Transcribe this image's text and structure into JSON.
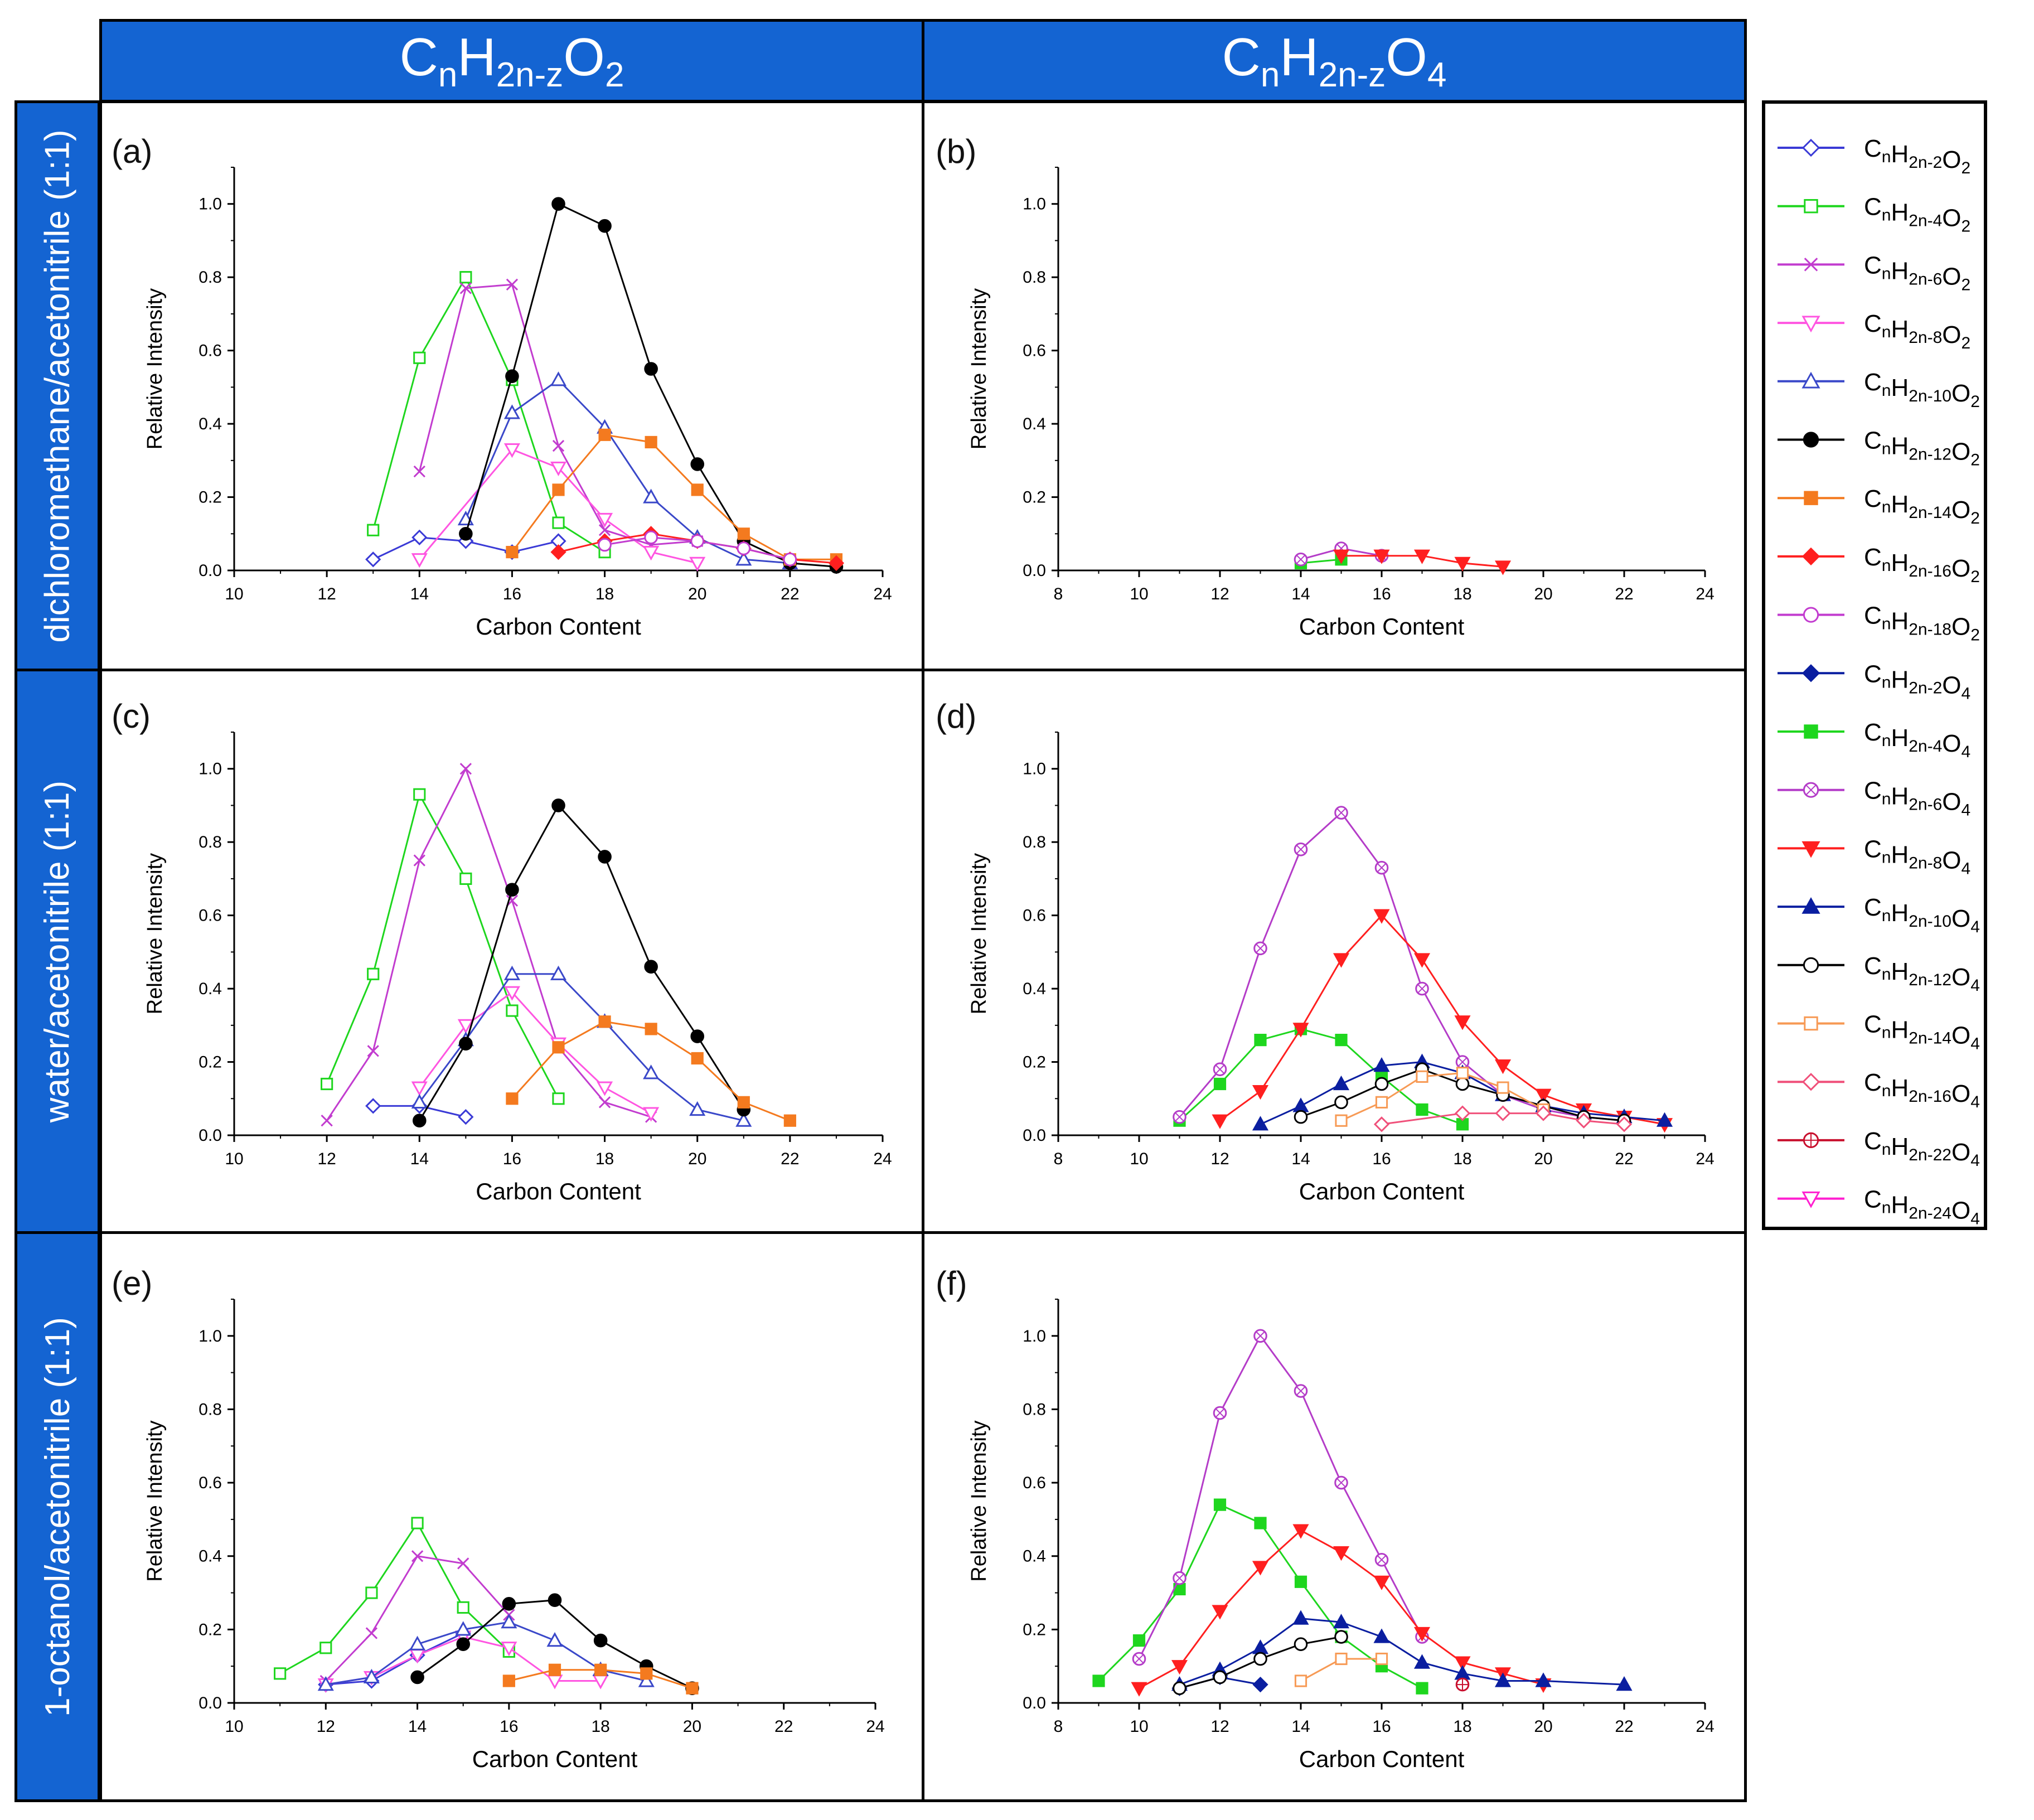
{
  "headers": {
    "columns": [
      {
        "base": "C",
        "sub1": "n",
        "mid": "H",
        "sub2": "2n-z",
        "mid2": "O",
        "sub3": "2"
      },
      {
        "base": "C",
        "sub1": "n",
        "mid": "H",
        "sub2": "2n-z",
        "mid2": "O",
        "sub3": "4"
      }
    ],
    "rows": [
      "dichloromethane/acetonitrile (1:1)",
      "water/acetonitrile (1:1)",
      "1-octanol/acetonitrile (1:1)"
    ]
  },
  "series_styles": [
    {
      "id": "O2_2",
      "z": "2",
      "o": "2",
      "color": "#3a3ad6",
      "marker": "diamond",
      "filled": false
    },
    {
      "id": "O2_4",
      "z": "4",
      "o": "2",
      "color": "#1ed61e",
      "marker": "square",
      "filled": false
    },
    {
      "id": "O2_6",
      "z": "6",
      "o": "2",
      "color": "#c23ccf",
      "marker": "cross",
      "filled": false
    },
    {
      "id": "O2_8",
      "z": "8",
      "o": "2",
      "color": "#ff55e1",
      "marker": "tri-down",
      "filled": false
    },
    {
      "id": "O2_10",
      "z": "10",
      "o": "2",
      "color": "#3a48c9",
      "marker": "tri-up",
      "filled": false
    },
    {
      "id": "O2_12",
      "z": "12",
      "o": "2",
      "color": "#000000",
      "marker": "circle",
      "filled": true
    },
    {
      "id": "O2_14",
      "z": "14",
      "o": "2",
      "color": "#f47a1f",
      "marker": "square",
      "filled": true
    },
    {
      "id": "O2_16",
      "z": "16",
      "o": "2",
      "color": "#ff1f1f",
      "marker": "diamond",
      "filled": true
    },
    {
      "id": "O2_18",
      "z": "18",
      "o": "2",
      "color": "#c23ccf",
      "marker": "circle",
      "filled": false
    },
    {
      "id": "O4_2",
      "z": "2",
      "o": "4",
      "color": "#0a1ea0",
      "marker": "diamond",
      "filled": true
    },
    {
      "id": "O4_4",
      "z": "4",
      "o": "4",
      "color": "#1ed61e",
      "marker": "square",
      "filled": true
    },
    {
      "id": "O4_6",
      "z": "6",
      "o": "4",
      "color": "#b43cc8",
      "marker": "circle-x",
      "filled": false
    },
    {
      "id": "O4_8",
      "z": "8",
      "o": "4",
      "color": "#ff1f1f",
      "marker": "tri-down",
      "filled": true
    },
    {
      "id": "O4_10",
      "z": "10",
      "o": "4",
      "color": "#0a1ea0",
      "marker": "tri-up",
      "filled": true
    },
    {
      "id": "O4_12",
      "z": "12",
      "o": "4",
      "color": "#000000",
      "marker": "circle",
      "filled": false
    },
    {
      "id": "O4_14",
      "z": "14",
      "o": "4",
      "color": "#f79a55",
      "marker": "square",
      "filled": false
    },
    {
      "id": "O4_16",
      "z": "16",
      "o": "4",
      "color": "#f0507a",
      "marker": "diamond",
      "filled": false
    },
    {
      "id": "O4_22",
      "z": "22",
      "o": "4",
      "color": "#c8102e",
      "marker": "circle-plus",
      "filled": false
    },
    {
      "id": "O4_24",
      "z": "24",
      "o": "4",
      "color": "#ff1fd0",
      "marker": "tri-down",
      "filled": false
    }
  ],
  "chart_data": [
    {
      "panel": "(a)",
      "type": "line",
      "xlabel": "Carbon Content",
      "ylabel": "Relative Intensity",
      "xlim": [
        10,
        24
      ],
      "ylim": [
        0,
        1.1
      ],
      "xticks": [
        "10",
        "12",
        "14",
        "16",
        "18",
        "20",
        "22",
        "24"
      ],
      "yticks": [
        "0.0",
        "0.2",
        "0.4",
        "0.6",
        "0.8",
        "1.0"
      ],
      "series": [
        {
          "id": "O2_2",
          "x": [
            13,
            14,
            15,
            16,
            17
          ],
          "y": [
            0.03,
            0.09,
            0.08,
            0.05,
            0.08
          ]
        },
        {
          "id": "O2_4",
          "x": [
            13,
            14,
            15,
            16,
            17,
            18
          ],
          "y": [
            0.11,
            0.58,
            0.8,
            0.52,
            0.13,
            0.05
          ]
        },
        {
          "id": "O2_6",
          "x": [
            14,
            15,
            16,
            17,
            18,
            19,
            20
          ],
          "y": [
            0.27,
            0.77,
            0.78,
            0.34,
            0.11,
            0.07,
            0.08
          ]
        },
        {
          "id": "O2_8",
          "x": [
            14,
            16,
            17,
            18,
            19,
            20
          ],
          "y": [
            0.03,
            0.33,
            0.28,
            0.14,
            0.05,
            0.02
          ]
        },
        {
          "id": "O2_10",
          "x": [
            15,
            16,
            17,
            18,
            19,
            20,
            21,
            22
          ],
          "y": [
            0.14,
            0.43,
            0.52,
            0.39,
            0.2,
            0.09,
            0.03,
            0.02
          ]
        },
        {
          "id": "O2_12",
          "x": [
            15,
            16,
            17,
            18,
            19,
            20,
            21,
            22,
            23
          ],
          "y": [
            0.1,
            0.53,
            1.0,
            0.94,
            0.55,
            0.29,
            0.08,
            0.02,
            0.01
          ]
        },
        {
          "id": "O2_14",
          "x": [
            16,
            17,
            18,
            19,
            20,
            21,
            22,
            23
          ],
          "y": [
            0.05,
            0.22,
            0.37,
            0.35,
            0.22,
            0.1,
            0.03,
            0.03
          ]
        },
        {
          "id": "O2_16",
          "x": [
            17,
            18,
            19,
            20,
            21,
            22,
            23
          ],
          "y": [
            0.05,
            0.08,
            0.1,
            0.08,
            0.06,
            0.03,
            0.02
          ]
        },
        {
          "id": "O2_18",
          "x": [
            18,
            19,
            20,
            21,
            22
          ],
          "y": [
            0.07,
            0.09,
            0.08,
            0.06,
            0.03
          ]
        }
      ]
    },
    {
      "panel": "(b)",
      "type": "line",
      "xlabel": "Carbon Content",
      "ylabel": "Relative Intensity",
      "xlim": [
        8,
        24
      ],
      "ylim": [
        0,
        1.1
      ],
      "xticks": [
        "8",
        "10",
        "12",
        "14",
        "16",
        "18",
        "20",
        "22",
        "24"
      ],
      "yticks": [
        "0.0",
        "0.2",
        "0.4",
        "0.6",
        "0.8",
        "1.0"
      ],
      "series": [
        {
          "id": "O4_4",
          "x": [
            14,
            15
          ],
          "y": [
            0.02,
            0.03
          ]
        },
        {
          "id": "O4_6",
          "x": [
            14,
            15,
            16
          ],
          "y": [
            0.03,
            0.06,
            0.04
          ]
        },
        {
          "id": "O4_8",
          "x": [
            15,
            16,
            17,
            18,
            19
          ],
          "y": [
            0.04,
            0.04,
            0.04,
            0.02,
            0.01
          ]
        }
      ]
    },
    {
      "panel": "(c)",
      "type": "line",
      "xlabel": "Carbon Content",
      "ylabel": "Relative Intensity",
      "xlim": [
        10,
        24
      ],
      "ylim": [
        0,
        1.1
      ],
      "xticks": [
        "10",
        "12",
        "14",
        "16",
        "18",
        "20",
        "22",
        "24"
      ],
      "yticks": [
        "0.0",
        "0.2",
        "0.4",
        "0.6",
        "0.8",
        "1.0"
      ],
      "series": [
        {
          "id": "O2_2",
          "x": [
            13,
            14,
            15
          ],
          "y": [
            0.08,
            0.08,
            0.05
          ]
        },
        {
          "id": "O2_4",
          "x": [
            12,
            13,
            14,
            15,
            16,
            17
          ],
          "y": [
            0.14,
            0.44,
            0.93,
            0.7,
            0.34,
            0.1
          ]
        },
        {
          "id": "O2_6",
          "x": [
            12,
            13,
            14,
            15,
            16,
            17,
            18,
            19
          ],
          "y": [
            0.04,
            0.23,
            0.75,
            1.0,
            0.64,
            0.24,
            0.09,
            0.05
          ]
        },
        {
          "id": "O2_8",
          "x": [
            14,
            15,
            16,
            17,
            18,
            19
          ],
          "y": [
            0.13,
            0.3,
            0.39,
            0.25,
            0.13,
            0.06
          ]
        },
        {
          "id": "O2_10",
          "x": [
            14,
            15,
            16,
            17,
            18,
            19,
            20,
            21
          ],
          "y": [
            0.09,
            0.26,
            0.44,
            0.44,
            0.31,
            0.17,
            0.07,
            0.04
          ]
        },
        {
          "id": "O2_12",
          "x": [
            14,
            15,
            16,
            17,
            18,
            19,
            20,
            21
          ],
          "y": [
            0.04,
            0.25,
            0.67,
            0.9,
            0.76,
            0.46,
            0.27,
            0.07
          ]
        },
        {
          "id": "O2_14",
          "x": [
            16,
            17,
            18,
            19,
            20,
            21,
            22
          ],
          "y": [
            0.1,
            0.24,
            0.31,
            0.29,
            0.21,
            0.09,
            0.04
          ]
        }
      ]
    },
    {
      "panel": "(d)",
      "type": "line",
      "xlabel": "Carbon Content",
      "ylabel": "Relative Intensity",
      "xlim": [
        8,
        24
      ],
      "ylim": [
        0,
        1.1
      ],
      "xticks": [
        "8",
        "10",
        "12",
        "14",
        "16",
        "18",
        "20",
        "22",
        "24"
      ],
      "yticks": [
        "0.0",
        "0.2",
        "0.4",
        "0.6",
        "0.8",
        "1.0"
      ],
      "series": [
        {
          "id": "O4_4",
          "x": [
            11,
            12,
            13,
            14,
            15,
            16,
            17,
            18
          ],
          "y": [
            0.04,
            0.14,
            0.26,
            0.29,
            0.26,
            0.16,
            0.07,
            0.03
          ]
        },
        {
          "id": "O4_6",
          "x": [
            11,
            12,
            13,
            14,
            15,
            16,
            17,
            18,
            19,
            20,
            21,
            22
          ],
          "y": [
            0.05,
            0.18,
            0.51,
            0.78,
            0.88,
            0.73,
            0.4,
            0.2,
            0.11,
            0.07,
            0.05,
            0.04
          ]
        },
        {
          "id": "O4_8",
          "x": [
            12,
            13,
            14,
            15,
            16,
            17,
            18,
            19,
            20,
            21,
            22,
            23
          ],
          "y": [
            0.04,
            0.12,
            0.29,
            0.48,
            0.6,
            0.48,
            0.31,
            0.19,
            0.11,
            0.07,
            0.05,
            0.03
          ]
        },
        {
          "id": "O4_10",
          "x": [
            13,
            14,
            15,
            16,
            17,
            18,
            19,
            20,
            21,
            22,
            23
          ],
          "y": [
            0.03,
            0.08,
            0.14,
            0.19,
            0.2,
            0.17,
            0.11,
            0.08,
            0.06,
            0.05,
            0.04
          ]
        },
        {
          "id": "O4_12",
          "x": [
            14,
            15,
            16,
            17,
            18,
            19,
            20,
            21,
            22
          ],
          "y": [
            0.05,
            0.09,
            0.14,
            0.18,
            0.14,
            0.11,
            0.08,
            0.05,
            0.04
          ]
        },
        {
          "id": "O4_14",
          "x": [
            15,
            16,
            17,
            18,
            19,
            20
          ],
          "y": [
            0.04,
            0.09,
            0.16,
            0.17,
            0.13,
            0.07
          ]
        },
        {
          "id": "O4_16",
          "x": [
            16,
            18,
            19,
            20,
            21,
            22
          ],
          "y": [
            0.03,
            0.06,
            0.06,
            0.06,
            0.04,
            0.03
          ]
        }
      ]
    },
    {
      "panel": "(e)",
      "type": "line",
      "xlabel": "Carbon Content",
      "ylabel": "Relative Intensity",
      "xlim": [
        10,
        24
      ],
      "ylim": [
        0,
        1.1
      ],
      "xticks": [
        "10",
        "12",
        "14",
        "16",
        "18",
        "20",
        "22",
        "24"
      ],
      "yticks": [
        "0.0",
        "0.2",
        "0.4",
        "0.6",
        "0.8",
        "1.0"
      ],
      "series": [
        {
          "id": "O2_2",
          "x": [
            12,
            13,
            14,
            15
          ],
          "y": [
            0.05,
            0.06,
            0.13,
            0.19
          ]
        },
        {
          "id": "O2_4",
          "x": [
            11,
            12,
            13,
            14,
            15,
            16
          ],
          "y": [
            0.08,
            0.15,
            0.3,
            0.49,
            0.26,
            0.14
          ]
        },
        {
          "id": "O2_6",
          "x": [
            12,
            13,
            14,
            15,
            16
          ],
          "y": [
            0.06,
            0.19,
            0.4,
            0.38,
            0.24
          ]
        },
        {
          "id": "O2_8",
          "x": [
            12,
            13,
            14,
            15,
            16,
            17,
            18
          ],
          "y": [
            0.05,
            0.07,
            0.13,
            0.18,
            0.15,
            0.06,
            0.06
          ]
        },
        {
          "id": "O2_10",
          "x": [
            12,
            13,
            14,
            15,
            16,
            17,
            18,
            19
          ],
          "y": [
            0.05,
            0.07,
            0.16,
            0.2,
            0.22,
            0.17,
            0.09,
            0.06
          ]
        },
        {
          "id": "O2_12",
          "x": [
            14,
            15,
            16,
            17,
            18,
            19,
            20
          ],
          "y": [
            0.07,
            0.16,
            0.27,
            0.28,
            0.17,
            0.1,
            0.04
          ]
        },
        {
          "id": "O2_14",
          "x": [
            16,
            17,
            18,
            19,
            20
          ],
          "y": [
            0.06,
            0.09,
            0.09,
            0.08,
            0.04
          ]
        }
      ]
    },
    {
      "panel": "(f)",
      "type": "line",
      "xlabel": "Carbon Content",
      "ylabel": "Relative Intensity",
      "xlim": [
        8,
        24
      ],
      "ylim": [
        0,
        1.1
      ],
      "xticks": [
        "8",
        "10",
        "12",
        "14",
        "16",
        "18",
        "20",
        "22",
        "24"
      ],
      "yticks": [
        "0.0",
        "0.2",
        "0.4",
        "0.6",
        "0.8",
        "1.0"
      ],
      "series": [
        {
          "id": "O4_2",
          "x": [
            11,
            12,
            13
          ],
          "y": [
            0.04,
            0.07,
            0.05
          ]
        },
        {
          "id": "O4_4",
          "x": [
            9,
            10,
            11,
            12,
            13,
            14,
            15,
            16,
            17
          ],
          "y": [
            0.06,
            0.17,
            0.31,
            0.54,
            0.49,
            0.33,
            0.18,
            0.1,
            0.04
          ]
        },
        {
          "id": "O4_6",
          "x": [
            10,
            11,
            12,
            13,
            14,
            15,
            16,
            17
          ],
          "y": [
            0.12,
            0.34,
            0.79,
            1.0,
            0.85,
            0.6,
            0.39,
            0.18
          ]
        },
        {
          "id": "O4_8",
          "x": [
            10,
            11,
            12,
            13,
            14,
            15,
            16,
            17,
            18,
            19,
            20
          ],
          "y": [
            0.04,
            0.1,
            0.25,
            0.37,
            0.47,
            0.41,
            0.33,
            0.19,
            0.11,
            0.08,
            0.05
          ]
        },
        {
          "id": "O4_10",
          "x": [
            11,
            12,
            13,
            14,
            15,
            16,
            17,
            18,
            19,
            20,
            22
          ],
          "y": [
            0.05,
            0.09,
            0.15,
            0.23,
            0.22,
            0.18,
            0.11,
            0.08,
            0.06,
            0.06,
            0.05
          ]
        },
        {
          "id": "O4_12",
          "x": [
            11,
            12,
            13,
            14,
            15
          ],
          "y": [
            0.04,
            0.07,
            0.12,
            0.16,
            0.18
          ]
        },
        {
          "id": "O4_14",
          "x": [
            14,
            15,
            16
          ],
          "y": [
            0.06,
            0.12,
            0.12
          ]
        },
        {
          "id": "O4_22",
          "x": [
            18
          ],
          "y": [
            0.05
          ]
        }
      ]
    }
  ]
}
